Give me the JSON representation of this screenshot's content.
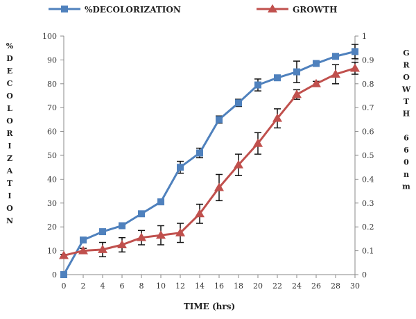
{
  "chart_data": {
    "type": "line",
    "x": [
      0,
      2,
      4,
      6,
      8,
      10,
      12,
      14,
      16,
      18,
      20,
      22,
      24,
      26,
      28,
      30
    ],
    "xlabel": "TIME (hrs)",
    "xlim": [
      0,
      30
    ],
    "ylabel_left": [
      "%",
      "D",
      "E",
      "C",
      "O",
      "L",
      "O",
      "R",
      "I",
      "Z",
      "A",
      "T",
      "I",
      "O",
      "N"
    ],
    "ylabel_right": [
      "G",
      "R",
      "O",
      "W",
      "T",
      "H",
      "",
      "6",
      "6",
      "0",
      "n",
      "m"
    ],
    "ylim_left": [
      0,
      100
    ],
    "ylim_right": [
      0,
      1
    ],
    "y_ticks_left": [
      0,
      10,
      20,
      30,
      40,
      50,
      60,
      70,
      80,
      90,
      100
    ],
    "y_ticks_right": [
      0,
      0.1,
      0.2,
      0.3,
      0.4,
      0.5,
      0.6,
      0.7,
      0.8,
      0.9,
      1
    ],
    "legend_position": "top",
    "series": [
      {
        "name": "%DECOLORIZATION",
        "axis": "left",
        "color": "#4F81BD",
        "marker": "square",
        "values": [
          0,
          14.5,
          18,
          20.5,
          25.5,
          30.5,
          45,
          51,
          65,
          72,
          79.5,
          82.5,
          85,
          88.5,
          91.5,
          93.5
        ],
        "errors": [
          0,
          0.5,
          0.8,
          0.8,
          0.8,
          1,
          2.5,
          2,
          1.5,
          1.5,
          2.5,
          0.5,
          4.5,
          1,
          1,
          3
        ]
      },
      {
        "name": "GROWTH",
        "axis": "right",
        "color": "#C0504D",
        "marker": "triangle",
        "values": [
          0.08,
          0.1,
          0.105,
          0.125,
          0.155,
          0.165,
          0.175,
          0.255,
          0.365,
          0.46,
          0.55,
          0.655,
          0.755,
          0.8,
          0.84,
          0.865
        ],
        "errors": [
          0.005,
          0.01,
          0.03,
          0.03,
          0.03,
          0.04,
          0.04,
          0.04,
          0.055,
          0.045,
          0.045,
          0.04,
          0.02,
          0.01,
          0.04,
          0.025
        ]
      }
    ]
  }
}
